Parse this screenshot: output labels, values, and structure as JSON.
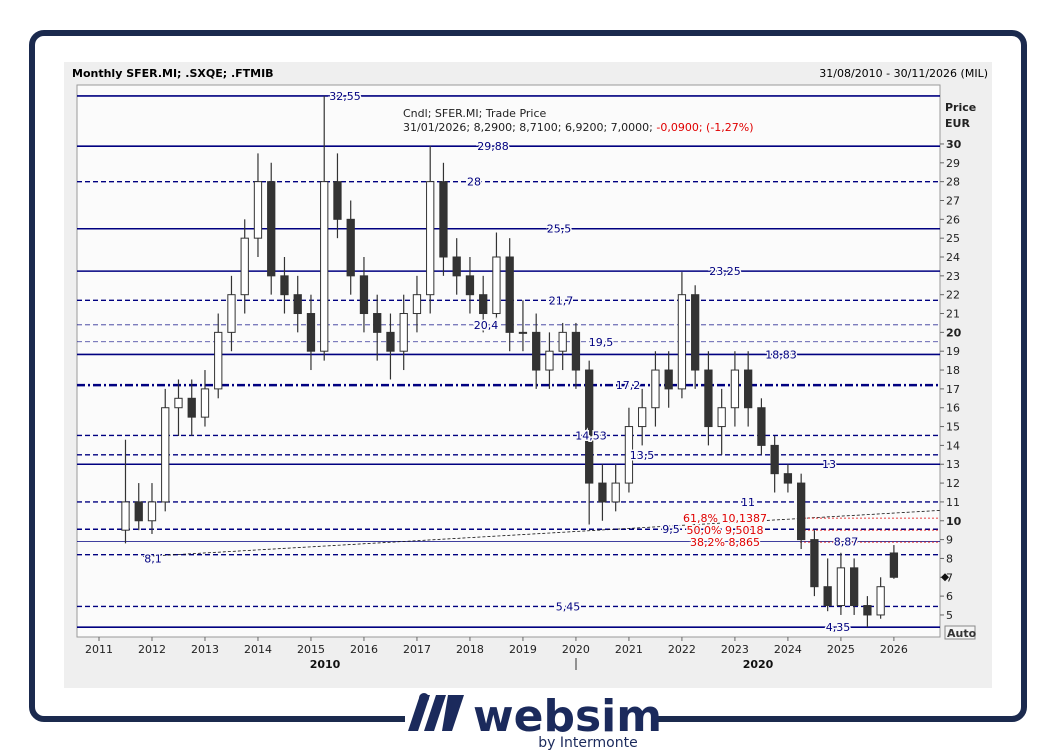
{
  "header": {
    "title": "Monthly SFER.MI; .SXQE; .FTMIB",
    "range": "31/08/2010 - 30/11/2026 (MIL)"
  },
  "chart_data": {
    "type": "candlestick",
    "info": [
      "Cndl; SFER.MI; Trade Price",
      "31/01/2026; 8,2900; 8,7100; 6,9200; 7,0000;"
    ],
    "info_change": "-0,0900; (-1,27%)",
    "y_axis_label": [
      "Price",
      "EUR"
    ],
    "scale_mode": "Auto",
    "color": "#333333",
    "level_color": "#000080",
    "fib_color": "#e00000",
    "x": [
      2011.5,
      2011.75,
      2012,
      2012.25,
      2012.5,
      2012.75,
      2013,
      2013.25,
      2013.5,
      2013.75,
      2014,
      2014.25,
      2014.5,
      2014.75,
      2015,
      2015.25,
      2015.5,
      2015.75,
      2016,
      2016.25,
      2016.5,
      2016.75,
      2017,
      2017.25,
      2017.5,
      2017.75,
      2018,
      2018.25,
      2018.5,
      2018.75,
      2019,
      2019.25,
      2019.5,
      2019.75,
      2020,
      2020.25,
      2020.5,
      2020.75,
      2021,
      2021.25,
      2021.5,
      2021.75,
      2022,
      2022.25,
      2022.5,
      2022.75,
      2023,
      2023.25,
      2023.5,
      2023.75,
      2024,
      2024.25,
      2024.5,
      2024.75,
      2025,
      2025.25,
      2025.5,
      2025.75,
      2026
    ],
    "open": [
      9.5,
      11,
      10,
      11,
      16,
      16.5,
      15.5,
      17,
      20,
      22,
      25,
      28,
      23,
      22,
      21,
      19,
      28,
      26,
      23,
      21,
      20,
      19,
      21,
      22,
      28,
      24,
      23,
      22,
      21,
      24,
      20,
      20,
      18,
      19,
      20,
      18,
      12,
      11,
      12,
      15,
      16,
      18,
      17,
      22,
      18,
      15,
      16,
      18,
      16,
      14,
      12.5,
      12,
      9,
      6.5,
      5.5,
      7.5,
      5.5,
      5,
      8.29
    ],
    "high": [
      14.3,
      12,
      12,
      17,
      17.5,
      17.5,
      18,
      21,
      23,
      26,
      29.5,
      29,
      24,
      23,
      22,
      32.55,
      29.5,
      27,
      24,
      22,
      21,
      22,
      23,
      29.9,
      29,
      25,
      24,
      23,
      25.3,
      25,
      21.7,
      21,
      20,
      20.5,
      20.5,
      18.5,
      13,
      13,
      16,
      17,
      19,
      19,
      23.2,
      22.5,
      19,
      17,
      19,
      19,
      16.5,
      14.5,
      13,
      12.5,
      9.5,
      8,
      8.3,
      8,
      6,
      7,
      8.71
    ],
    "low": [
      8.8,
      9.5,
      9.3,
      10.5,
      14.5,
      14.5,
      15,
      16.5,
      19,
      21,
      24,
      22,
      21,
      20,
      18,
      18.5,
      25,
      22,
      20,
      18.5,
      17.5,
      18,
      20,
      21,
      23,
      22,
      21,
      20,
      20.5,
      19,
      19,
      17,
      17,
      18,
      17,
      9.8,
      10,
      10.5,
      11.5,
      14,
      15,
      16,
      16.5,
      17,
      14,
      13.5,
      15,
      15,
      13.5,
      11.5,
      11.5,
      8.5,
      6,
      5.2,
      5,
      5,
      4.35,
      4.8,
      6.92
    ],
    "close": [
      11,
      10,
      11,
      16,
      16.5,
      15.5,
      17,
      20,
      22,
      25,
      28,
      23,
      22,
      21,
      19,
      28,
      26,
      23,
      21,
      20,
      19,
      21,
      22,
      28,
      24,
      23,
      22,
      21,
      24,
      20,
      20,
      18,
      19,
      20,
      18,
      12,
      11,
      12,
      15,
      16,
      18,
      17,
      22,
      18,
      15,
      16,
      18,
      16,
      14,
      12.5,
      12,
      9,
      6.5,
      5.5,
      7.5,
      5.5,
      5,
      6.5,
      7
    ],
    "xlim": [
      2010.585,
      2026.87
    ],
    "xticks": [
      2011,
      2012,
      2013,
      2014,
      2015,
      2016,
      2017,
      2018,
      2019,
      2020,
      2021,
      2022,
      2023,
      2024,
      2025,
      2026
    ],
    "x_group_labels": [
      "2010",
      "2020"
    ],
    "ylim": [
      3.83,
      33.13
    ],
    "yticks": [
      5,
      6,
      7,
      8,
      9,
      10,
      11,
      12,
      13,
      14,
      15,
      16,
      17,
      18,
      19,
      20,
      21,
      22,
      23,
      24,
      25,
      26,
      27,
      28,
      29,
      30
    ],
    "levels": [
      {
        "value": 32.55,
        "label": "32,55",
        "style": "solid"
      },
      {
        "value": 29.88,
        "label": "29,88",
        "style": "solid"
      },
      {
        "value": 28,
        "label": "28",
        "style": "dashed"
      },
      {
        "value": 25.5,
        "label": "25,5",
        "style": "solid"
      },
      {
        "value": 23.25,
        "label": "23,25",
        "style": "solid"
      },
      {
        "value": 21.7,
        "label": "21,7",
        "style": "dashed"
      },
      {
        "value": 20.4,
        "label": "20,4",
        "style": "thin"
      },
      {
        "value": 19.5,
        "label": "19,5",
        "style": "thin"
      },
      {
        "value": 18.83,
        "label": "18,83",
        "style": "solid"
      },
      {
        "value": 17.2,
        "label": "17,2",
        "style": "dashdot"
      },
      {
        "value": 14.53,
        "label": "14,53",
        "style": "dashed"
      },
      {
        "value": 13.5,
        "label": "13,5",
        "style": "dashed"
      },
      {
        "value": 13,
        "label": "13",
        "style": "solid"
      },
      {
        "value": 11,
        "label": "11",
        "style": "dashed"
      },
      {
        "value": 9.55,
        "label": "9,5",
        "style": "dashed"
      },
      {
        "value": 8.9,
        "label": "8,87",
        "style": "thinsolid"
      },
      {
        "value": 8.2,
        "style": "dashed"
      },
      {
        "value": 5.45,
        "label": "5,45",
        "style": "dashed"
      },
      {
        "value": 4.35,
        "label": "4,35",
        "style": "solid"
      }
    ],
    "trendline": {
      "x": [
        2011.83,
        2026.87
      ],
      "y": [
        8.1,
        10.55
      ],
      "label": "8,1"
    },
    "fibonacci": [
      {
        "value": 10.1387,
        "label": "61,8% 10,1387"
      },
      {
        "value": 9.5018,
        "label": "50,0% 9,5018"
      },
      {
        "value": 8.865,
        "label": "38,2% 8,865"
      }
    ]
  },
  "logo": {
    "name": "websim",
    "tagline": "by Intermonte"
  }
}
